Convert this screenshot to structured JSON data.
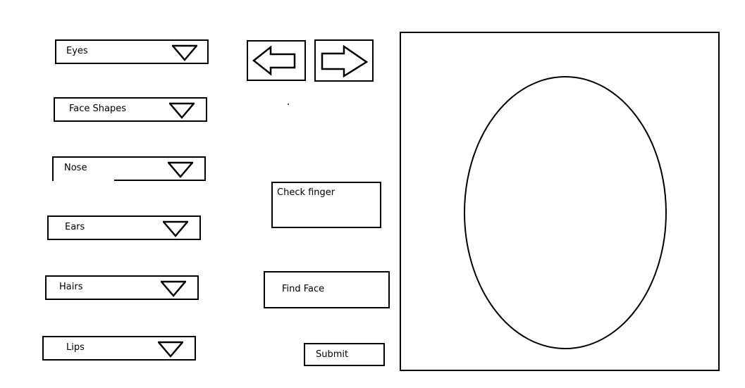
{
  "dropdowns": [
    {
      "label": "Eyes"
    },
    {
      "label": "Face Shapes"
    },
    {
      "label": "Nose"
    },
    {
      "label": "Ears"
    },
    {
      "label": "Hairs"
    },
    {
      "label": "Lips"
    }
  ],
  "navigation": {
    "previous_icon": "left-arrow-icon",
    "next_icon": "right-arrow-icon"
  },
  "buttons": {
    "check_finger": "Check finger",
    "find_face": "Find Face",
    "submit": "Submit"
  },
  "canvas": {
    "shape": "oval-face-outline"
  }
}
